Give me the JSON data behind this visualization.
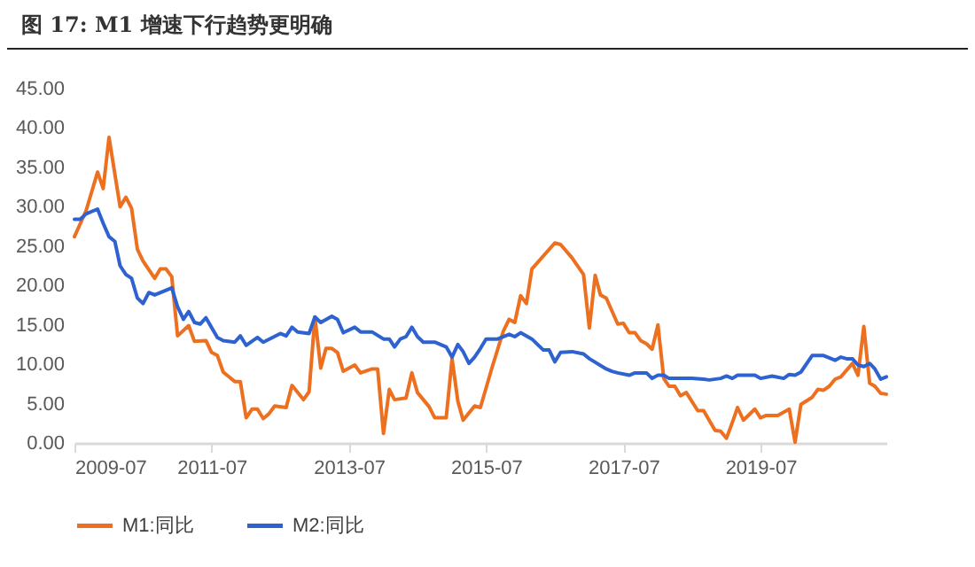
{
  "chart_data": {
    "type": "line",
    "title": "图 17: M1 增速下行趋势更明确",
    "xlim": [
      "2009-07",
      "2021-05"
    ],
    "xticks": [
      "2009-07",
      "2011-07",
      "2013-07",
      "2015-07",
      "2017-07",
      "2019-07"
    ],
    "ylim": [
      0,
      45
    ],
    "yticks": [
      {
        "value": 0,
        "label": "0.00"
      },
      {
        "value": 5,
        "label": "5.00"
      },
      {
        "value": 10,
        "label": "10.00"
      },
      {
        "value": 15,
        "label": "15.00"
      },
      {
        "value": 20,
        "label": "20.00"
      },
      {
        "value": 25,
        "label": "25.00"
      },
      {
        "value": 30,
        "label": "30.00"
      },
      {
        "value": 35,
        "label": "35.00"
      },
      {
        "value": 40,
        "label": "40.00"
      },
      {
        "value": 45,
        "label": "45.00"
      }
    ],
    "legend": "bottom",
    "line_style": "solid",
    "series": [
      {
        "name": "M1:同比",
        "color": "#ed7021",
        "x": [
          "2009-07",
          "2009-09",
          "2009-11",
          "2009-12",
          "2010-01",
          "2010-03",
          "2010-04",
          "2010-05",
          "2010-06",
          "2010-07",
          "2010-09",
          "2010-10",
          "2010-11",
          "2010-12",
          "2011-01",
          "2011-03",
          "2011-04",
          "2011-06",
          "2011-07",
          "2011-08",
          "2011-09",
          "2011-11",
          "2011-12",
          "2012-01",
          "2012-02",
          "2012-03",
          "2012-04",
          "2012-05",
          "2012-06",
          "2012-08",
          "2012-09",
          "2012-11",
          "2012-12",
          "2013-01",
          "2013-02",
          "2013-03",
          "2013-04",
          "2013-05",
          "2013-06",
          "2013-08",
          "2013-09",
          "2013-11",
          "2013-12",
          "2014-01",
          "2014-02",
          "2014-03",
          "2014-05",
          "2014-06",
          "2014-07",
          "2014-09",
          "2014-10",
          "2014-12",
          "2015-01",
          "2015-02",
          "2015-03",
          "2015-05",
          "2015-06",
          "2015-08",
          "2015-10",
          "2015-11",
          "2015-12",
          "2016-01",
          "2016-02",
          "2016-03",
          "2016-07",
          "2016-08",
          "2016-10",
          "2016-12",
          "2017-01",
          "2017-02",
          "2017-03",
          "2017-04",
          "2017-06",
          "2017-07",
          "2017-08",
          "2017-09",
          "2017-10",
          "2017-11",
          "2017-12",
          "2018-01",
          "2018-02",
          "2018-03",
          "2018-04",
          "2018-05",
          "2018-06",
          "2018-08",
          "2018-09",
          "2018-11",
          "2018-12",
          "2019-01",
          "2019-02",
          "2019-03",
          "2019-04",
          "2019-06",
          "2019-07",
          "2019-08",
          "2019-10",
          "2019-12",
          "2020-01",
          "2020-02",
          "2020-04",
          "2020-05",
          "2020-06",
          "2020-07",
          "2020-08",
          "2020-09",
          "2020-11",
          "2020-12",
          "2021-01",
          "2021-02",
          "2021-03",
          "2021-04",
          "2021-05"
        ],
        "values": [
          26.2,
          29.5,
          34.4,
          32.3,
          38.8,
          30.0,
          31.2,
          29.8,
          24.6,
          23.1,
          20.9,
          22.1,
          22.1,
          21.1,
          13.6,
          14.9,
          12.9,
          13.0,
          11.5,
          11.1,
          9.0,
          7.8,
          7.8,
          3.2,
          4.3,
          4.3,
          3.1,
          3.7,
          4.7,
          4.5,
          7.3,
          5.5,
          6.5,
          16.0,
          9.5,
          12.0,
          12.0,
          11.5,
          9.1,
          9.9,
          8.9,
          9.4,
          9.4,
          1.2,
          6.8,
          5.5,
          5.7,
          8.9,
          6.4,
          4.6,
          3.2,
          3.2,
          10.7,
          5.3,
          2.9,
          4.7,
          4.5,
          9.5,
          14.2,
          15.7,
          15.3,
          18.7,
          17.7,
          22.1,
          25.4,
          25.2,
          23.5,
          21.4,
          14.6,
          21.3,
          18.8,
          18.4,
          15.1,
          15.2,
          14.0,
          14.0,
          13.0,
          12.6,
          11.9,
          15.0,
          8.2,
          7.2,
          7.2,
          6.0,
          6.4,
          4.1,
          4.1,
          1.6,
          1.5,
          0.6,
          2.6,
          4.5,
          2.9,
          4.3,
          3.2,
          3.5,
          3.5,
          4.3,
          0.1,
          4.9,
          5.8,
          6.8,
          6.7,
          7.2,
          8.1,
          8.4,
          10.1,
          8.6,
          14.8,
          7.6,
          7.2,
          6.3,
          6.2
        ]
      },
      {
        "name": "M2:同比",
        "color": "#2e62d0",
        "x": [
          "2009-07",
          "2009-08",
          "2009-09",
          "2009-11",
          "2009-12",
          "2010-01",
          "2010-02",
          "2010-03",
          "2010-04",
          "2010-05",
          "2010-06",
          "2010-07",
          "2010-08",
          "2010-09",
          "2010-11",
          "2010-12",
          "2011-01",
          "2011-02",
          "2011-03",
          "2011-04",
          "2011-05",
          "2011-06",
          "2011-08",
          "2011-09",
          "2011-11",
          "2011-12",
          "2012-01",
          "2012-03",
          "2012-04",
          "2012-07",
          "2012-08",
          "2012-09",
          "2012-10",
          "2012-12",
          "2013-01",
          "2013-02",
          "2013-04",
          "2013-05",
          "2013-06",
          "2013-08",
          "2013-09",
          "2013-11",
          "2014-01",
          "2014-02",
          "2014-03",
          "2014-04",
          "2014-05",
          "2014-06",
          "2014-07",
          "2014-08",
          "2014-10",
          "2014-12",
          "2015-01",
          "2015-02",
          "2015-03",
          "2015-04",
          "2015-05",
          "2015-06",
          "2015-07",
          "2015-09",
          "2015-11",
          "2015-12",
          "2016-01",
          "2016-03",
          "2016-05",
          "2016-06",
          "2016-07",
          "2016-08",
          "2016-10",
          "2016-12",
          "2017-01",
          "2017-04",
          "2017-05",
          "2017-06",
          "2017-08",
          "2017-09",
          "2017-11",
          "2017-12",
          "2018-01",
          "2018-02",
          "2018-03",
          "2018-06",
          "2018-07",
          "2018-09",
          "2018-10",
          "2018-12",
          "2019-01",
          "2019-02",
          "2019-03",
          "2019-06",
          "2019-07",
          "2019-09",
          "2019-11",
          "2019-12",
          "2020-01",
          "2020-02",
          "2020-04",
          "2020-06",
          "2020-08",
          "2020-09",
          "2020-10",
          "2020-11",
          "2020-12",
          "2021-01",
          "2021-02",
          "2021-03",
          "2021-04",
          "2021-05"
        ],
        "values": [
          28.4,
          28.4,
          29.1,
          29.7,
          27.9,
          26.2,
          25.6,
          22.5,
          21.4,
          20.9,
          18.4,
          17.7,
          19.1,
          18.8,
          19.4,
          19.7,
          17.3,
          15.7,
          16.7,
          15.3,
          15.1,
          15.9,
          13.4,
          13.0,
          12.8,
          13.6,
          12.4,
          13.4,
          12.8,
          13.9,
          13.6,
          14.7,
          14.1,
          13.9,
          16.0,
          15.3,
          16.1,
          15.7,
          14.0,
          14.7,
          14.1,
          14.1,
          13.2,
          13.2,
          12.2,
          13.2,
          13.5,
          14.7,
          13.5,
          12.8,
          12.8,
          12.2,
          10.9,
          12.5,
          11.6,
          10.1,
          10.9,
          12.0,
          13.2,
          13.2,
          13.8,
          13.5,
          14.0,
          13.2,
          11.8,
          11.8,
          10.3,
          11.5,
          11.6,
          11.3,
          10.7,
          9.4,
          9.1,
          8.9,
          8.6,
          8.9,
          8.9,
          8.2,
          8.6,
          8.6,
          8.2,
          8.2,
          8.2,
          8.1,
          8.0,
          8.2,
          8.5,
          8.2,
          8.6,
          8.6,
          8.2,
          8.5,
          8.2,
          8.7,
          8.6,
          9.0,
          11.1,
          11.1,
          10.5,
          10.9,
          10.7,
          10.7,
          9.9,
          9.7,
          10.1,
          9.4,
          8.1,
          8.4
        ]
      }
    ]
  }
}
